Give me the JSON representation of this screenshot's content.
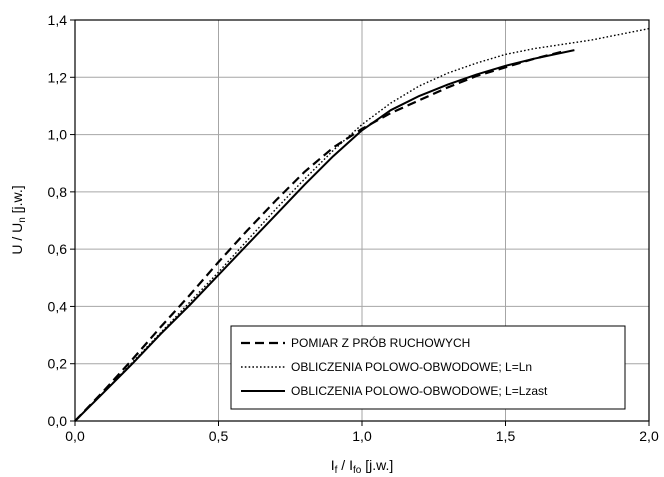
{
  "chart_data": {
    "type": "line",
    "title": "",
    "xlabel": {
      "main": "I",
      "sub1": "f",
      "mid": " / I",
      "sub2": "fo",
      "tail": " [j.w.]"
    },
    "ylabel": {
      "main": "U / U",
      "sub": "n",
      "tail": " [j.w.]"
    },
    "xlim": [
      0,
      2.0
    ],
    "ylim": [
      0,
      1.4
    ],
    "xticks": [
      0,
      0.5,
      1.0,
      1.5,
      2.0
    ],
    "xtick_labels": [
      "0,0",
      "0,5",
      "1,0",
      "1,5",
      "2,0"
    ],
    "yticks": [
      0,
      0.2,
      0.4,
      0.6,
      0.8,
      1.0,
      1.2,
      1.4
    ],
    "ytick_labels": [
      "0,0",
      "0,2",
      "0,4",
      "0,6",
      "0,8",
      "1,0",
      "1,2",
      "1,4"
    ],
    "grid": true,
    "legend_position": "bottom-right",
    "series": [
      {
        "name": "POMIAR Z PRÓB RUCHOWYCH",
        "style": "dashed",
        "x": [
          0,
          0.1,
          0.2,
          0.3,
          0.4,
          0.5,
          0.6,
          0.7,
          0.8,
          0.9,
          1.0,
          1.1,
          1.2,
          1.3,
          1.4,
          1.5,
          1.6,
          1.7
        ],
        "y": [
          0,
          0.105,
          0.215,
          0.33,
          0.44,
          0.555,
          0.665,
          0.77,
          0.87,
          0.955,
          1.02,
          1.075,
          1.12,
          1.165,
          1.205,
          1.235,
          1.265,
          1.29
        ]
      },
      {
        "name": "OBLICZENIA POLOWO-OBWODOWE; L=Ln",
        "style": "dotted",
        "x": [
          0,
          0.1,
          0.2,
          0.3,
          0.4,
          0.5,
          0.6,
          0.7,
          0.8,
          0.9,
          1.0,
          1.1,
          1.2,
          1.3,
          1.4,
          1.5,
          1.6,
          1.7,
          1.8,
          1.9,
          2.0
        ],
        "y": [
          0,
          0.1,
          0.205,
          0.31,
          0.415,
          0.52,
          0.63,
          0.74,
          0.845,
          0.945,
          1.035,
          1.11,
          1.17,
          1.215,
          1.25,
          1.28,
          1.3,
          1.315,
          1.33,
          1.35,
          1.37
        ]
      },
      {
        "name": "OBLICZENIA POLOWO-OBWODOWE; L=Lzast",
        "style": "solid",
        "x": [
          0,
          0.1,
          0.2,
          0.3,
          0.4,
          0.5,
          0.6,
          0.7,
          0.8,
          0.9,
          1.0,
          1.1,
          1.2,
          1.3,
          1.4,
          1.5,
          1.6,
          1.74
        ],
        "y": [
          0,
          0.1,
          0.2,
          0.305,
          0.405,
          0.51,
          0.615,
          0.72,
          0.825,
          0.925,
          1.015,
          1.085,
          1.135,
          1.175,
          1.21,
          1.24,
          1.265,
          1.295
        ]
      }
    ]
  }
}
